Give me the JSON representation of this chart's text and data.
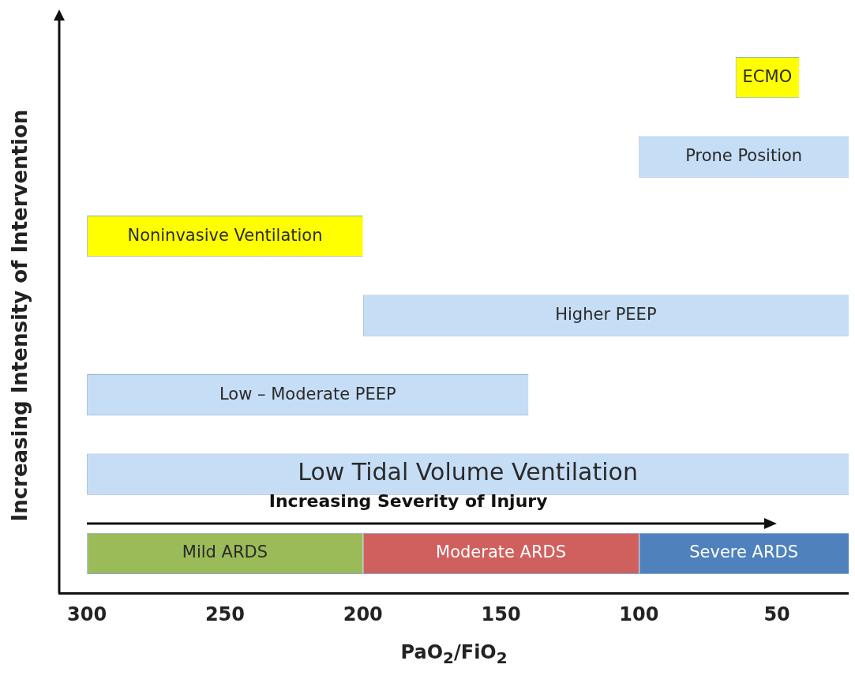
{
  "chart_data": {
    "type": "bar",
    "orientation": "horizontal",
    "stacked": true,
    "ylabel": "Increasing Intensity of Intervention",
    "xlabel": "PaO$_{2}$/FiO$_{2}$",
    "annotations": [
      "Increasing Severity of Injury"
    ],
    "categories": [
      null,
      null,
      null,
      null,
      null,
      null,
      null
    ],
    "series": [
      {
        "colors": [
          "#ffff00",
          "#c6ddf6",
          "#ffff00",
          "#c6ddf6",
          "#c6ddf6",
          "#c6ddf6",
          "#4f81bd"
        ],
        "values": [
          23,
          76,
          100,
          176,
          160,
          276,
          76
        ],
        "base": [
          42,
          24,
          200,
          24,
          140,
          24,
          24
        ],
        "value_labels": [
          "ECMO",
          "Prone Position",
          "Noninvasive Ventilation",
          "Higher PEEP",
          "Low – Moderate PEEP",
          "Low Tidal Volume Ventilation",
          "Severe ARDS"
        ]
      },
      {
        "color": "#d0605e",
        "values": [
          null,
          null,
          null,
          null,
          null,
          null,
          100
        ],
        "value_labels": [
          null,
          null,
          null,
          null,
          null,
          null,
          "Moderate ARDS"
        ]
      },
      {
        "color": "#9bbb59",
        "values": [
          null,
          null,
          null,
          null,
          null,
          null,
          100
        ],
        "value_labels": [
          null,
          null,
          null,
          null,
          null,
          null,
          "Mild ARDS"
        ]
      }
    ],
    "xlim": [
      310,
      24
    ],
    "xticks": [
      300,
      250,
      200,
      150,
      100,
      50
    ],
    "tick_labels": "x",
    "grid": false,
    "legend": false
  }
}
